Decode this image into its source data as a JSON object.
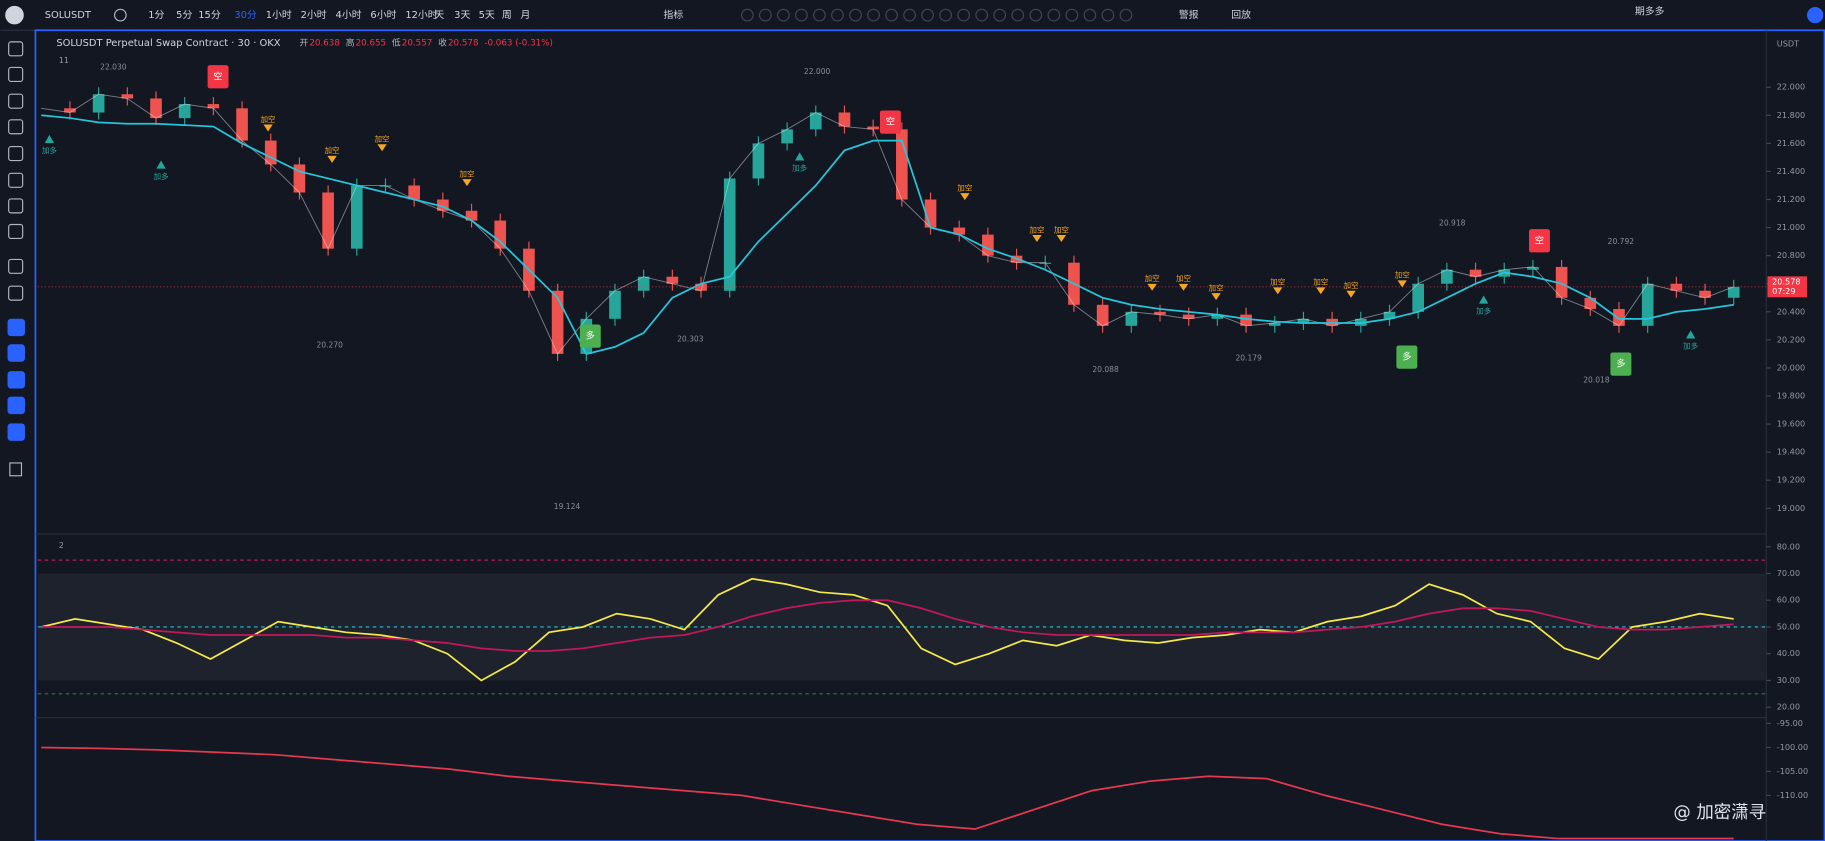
{
  "toolbar": {
    "symbol": "SOLUSDT",
    "intervals": [
      "1分",
      "5分",
      "15分",
      "30分",
      "1小时",
      "2小时",
      "4小时",
      "6小时",
      "12小时",
      "天",
      "3天",
      "5天",
      "周",
      "月"
    ],
    "indicators": "指标",
    "alert": "警报",
    "replay": "回放",
    "account": "期多多"
  },
  "legend": {
    "title": "SOLUSDT Perpetual Swap Contract · 30 · OKX",
    "open_label": "开",
    "open": "20.638",
    "high_label": "高",
    "high": "20.655",
    "low_label": "低",
    "low": "20.557",
    "close_label": "收",
    "close": "20.578",
    "change": "-0.063 (-0.31%)",
    "currency": "USDT"
  },
  "pane_labels": [
    "11",
    "2"
  ],
  "price_tag": {
    "price": "20.578",
    "countdown": "07:29"
  },
  "extremes": [
    "22.030",
    "20.270",
    "19.124",
    "20.303",
    "22.000",
    "20.088",
    "20.179",
    "20.918",
    "20.792",
    "20.018"
  ],
  "signals": [
    "空",
    "空",
    "空",
    "多",
    "多",
    "多"
  ],
  "adds": [
    "加多",
    "加多",
    "加多",
    "加多",
    "加多",
    "加空",
    "加空",
    "加空",
    "加空",
    "加空",
    "加空",
    "加空",
    "加空",
    "加空",
    "加空",
    "加空",
    "加空",
    "加空",
    "加空"
  ],
  "watermark": "@ 加密潇寻",
  "chart_data": [
    {
      "type": "line",
      "categories": [
        null,
        null,
        null,
        null,
        null,
        null,
        null,
        null,
        null,
        null,
        null,
        null,
        null,
        null,
        null,
        null,
        null,
        null,
        null,
        null,
        null,
        null,
        null,
        null,
        null,
        null,
        null,
        null,
        null,
        null,
        null,
        null,
        null,
        null,
        null,
        null,
        null,
        null,
        null,
        null,
        null,
        null,
        null,
        null,
        null,
        null,
        null,
        null,
        null,
        null,
        null,
        null,
        null,
        null,
        null,
        null,
        null,
        null,
        null,
        null
      ],
      "series": [
        {
          "color": "#e0e3eb",
          "values": [
            21.85,
            21.82,
            21.95,
            21.92,
            21.78,
            21.88,
            21.85,
            21.62,
            21.45,
            21.25,
            20.85,
            21.3,
            21.3,
            21.2,
            21.12,
            21.05,
            20.85,
            20.55,
            20.1,
            20.35,
            20.55,
            20.65,
            20.6,
            20.55,
            21.35,
            21.6,
            21.7,
            21.82,
            21.72,
            21.7,
            21.2,
            21.0,
            20.95,
            20.8,
            20.75,
            20.75,
            20.45,
            20.3,
            20.4,
            20.38,
            20.35,
            20.38,
            20.3,
            20.32,
            20.35,
            20.3,
            20.35,
            20.4,
            20.6,
            20.7,
            20.65,
            20.7,
            20.72,
            20.5,
            20.42,
            20.3,
            20.6,
            20.55,
            20.5,
            20.578
          ]
        },
        {
          "color": "#26c6da",
          "values": [
            21.8,
            21.78,
            21.75,
            21.74,
            21.74,
            21.73,
            21.72,
            21.6,
            21.5,
            21.4,
            21.35,
            21.3,
            21.25,
            21.2,
            21.15,
            21.05,
            20.9,
            20.7,
            20.5,
            20.1,
            20.15,
            20.25,
            20.5,
            20.6,
            20.65,
            20.9,
            21.1,
            21.3,
            21.55,
            21.62,
            21.62,
            21.0,
            20.95,
            20.85,
            20.78,
            20.7,
            20.6,
            20.5,
            20.45,
            20.42,
            20.4,
            20.38,
            20.35,
            20.33,
            20.32,
            20.32,
            20.32,
            20.35,
            20.4,
            20.5,
            20.6,
            20.68,
            20.65,
            20.6,
            20.5,
            20.35,
            20.35,
            20.4,
            20.42,
            20.45
          ]
        }
      ],
      "ylim": [
        18.834,
        22.373
      ],
      "yticks": [
        {
          "value": 19,
          "label": "19.000"
        },
        {
          "value": 19.2,
          "label": "19.200"
        },
        {
          "value": 19.4,
          "label": "19.400"
        },
        {
          "value": 19.6,
          "label": "19.600"
        },
        {
          "value": 19.8,
          "label": "19.800"
        },
        {
          "value": 20,
          "label": "20.000"
        },
        {
          "value": 20.2,
          "label": "20.200"
        },
        {
          "value": 20.4,
          "label": "20.400"
        },
        {
          "value": 20.6,
          "label": "20.600"
        },
        {
          "value": 20.8,
          "label": "20.800"
        },
        {
          "value": 21,
          "label": "21.000"
        },
        {
          "value": 21.2,
          "label": "21.200"
        },
        {
          "value": 21.4,
          "label": "21.400"
        },
        {
          "value": 21.6,
          "label": "21.600"
        },
        {
          "value": 21.8,
          "label": "21.800"
        },
        {
          "value": 22,
          "label": "22.000"
        }
      ]
    },
    {
      "type": "line",
      "categories": [
        null,
        null,
        null,
        null,
        null,
        null,
        null,
        null,
        null,
        null,
        null,
        null,
        null,
        null,
        null,
        null,
        null,
        null,
        null,
        null,
        null,
        null,
        null,
        null,
        null,
        null,
        null,
        null,
        null,
        null,
        null,
        null,
        null,
        null,
        null,
        null,
        null,
        null,
        null,
        null,
        null,
        null,
        null,
        null,
        null,
        null,
        null,
        null,
        null,
        null,
        null
      ],
      "series": [
        {
          "color": "#f5e94a",
          "values": [
            50,
            53,
            51,
            49,
            44,
            38,
            45,
            52,
            50,
            48,
            47,
            45,
            40,
            30,
            37,
            48,
            50,
            55,
            53,
            49,
            62,
            68,
            66,
            63,
            62,
            58,
            42,
            36,
            40,
            45,
            43,
            47,
            45,
            44,
            46,
            47,
            49,
            48,
            52,
            54,
            58,
            66,
            62,
            55,
            52,
            42,
            38,
            50,
            52,
            55,
            53
          ]
        },
        {
          "color": "#c2185b",
          "values": [
            50,
            50,
            50,
            49,
            48,
            47,
            47,
            47,
            47,
            46,
            46,
            45,
            44,
            42,
            41,
            41,
            42,
            44,
            46,
            47,
            50,
            54,
            57,
            59,
            60,
            60,
            57,
            53,
            50,
            48,
            47,
            47,
            47,
            47,
            47,
            48,
            48,
            48,
            49,
            50,
            52,
            55,
            57,
            57,
            56,
            53,
            50,
            49,
            49,
            50,
            51
          ]
        }
      ],
      "ylim": [
        16.5,
        83.5
      ],
      "band": [
        30,
        70
      ],
      "levels": [
        {
          "value": 75,
          "color": "#c2185b"
        },
        {
          "value": 50,
          "color": "#26c6da"
        },
        {
          "value": 25,
          "color": "#2e7d32"
        }
      ],
      "yticks": [
        {
          "value": 20,
          "label": "20.00"
        },
        {
          "value": 30,
          "label": "30.00"
        },
        {
          "value": 40,
          "label": "40.00"
        },
        {
          "value": 50,
          "label": "50.00"
        },
        {
          "value": 60,
          "label": "60.00"
        },
        {
          "value": 70,
          "label": "70.00"
        },
        {
          "value": 80,
          "label": "80.00"
        }
      ]
    },
    {
      "type": "line",
      "categories": [
        null,
        null,
        null,
        null,
        null,
        null,
        null,
        null,
        null,
        null,
        null,
        null,
        null,
        null,
        null,
        null,
        null,
        null,
        null,
        null,
        null,
        null,
        null,
        null,
        null,
        null,
        null,
        null,
        null,
        null
      ],
      "series": [
        {
          "color": "#e53950",
          "values": [
            -100,
            -100.2,
            -100.5,
            -101,
            -101.5,
            -102.5,
            -103.5,
            -104.5,
            -106,
            -107,
            -108,
            -109,
            -110,
            -112,
            -114,
            -116,
            -117,
            -113,
            -109,
            -107,
            -106,
            -106.5,
            -110,
            -113,
            -116,
            -118,
            -119,
            -119,
            -119,
            -119
          ]
        }
      ],
      "ylim": [
        -119.5,
        -94.03
      ],
      "yticks": [
        {
          "value": -110,
          "label": "-110.00"
        },
        {
          "value": -105,
          "label": "-105.00"
        },
        {
          "value": -100,
          "label": "-100.00"
        },
        {
          "value": -95,
          "label": "-95.00"
        }
      ]
    }
  ]
}
